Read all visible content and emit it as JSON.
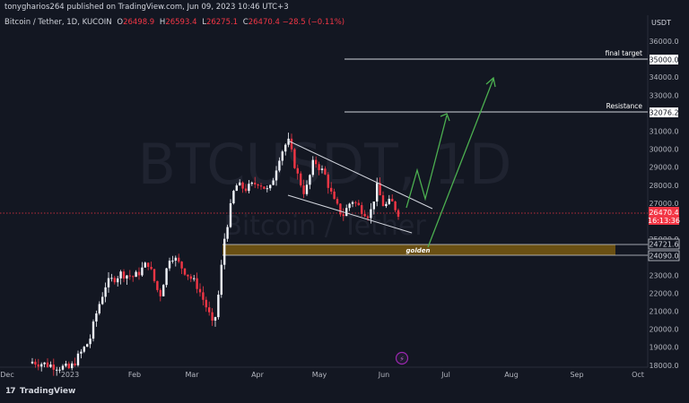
{
  "header": {
    "publish_line": "tonygharios264 published on TradingView.com, Jun 09, 2023 10:46 UTC+3"
  },
  "legend": {
    "symbol": "Bitcoin / Tether, 1D, KUCOIN",
    "o_key": "O",
    "o_val": "26498.9",
    "h_key": "H",
    "h_val": "26593.4",
    "l_key": "L",
    "l_val": "26275.1",
    "c_key": "C",
    "c_val": "26470.4",
    "change": "−28.5 (−0.11%)"
  },
  "watermark": {
    "ticker": "BTCUSDT, 1D",
    "name": "Bitcoin / Tether"
  },
  "price_axis": {
    "currency": "USDT",
    "ticks": [
      "36000.0",
      "35000.0",
      "34000.0",
      "33000.0",
      "32000.0",
      "31000.0",
      "30000.0",
      "29000.0",
      "28000.0",
      "27000.0",
      "25000.0",
      "24000.0",
      "23000.0",
      "22000.0",
      "21000.0",
      "20000.0",
      "19000.0",
      "18000.0"
    ]
  },
  "time_axis": {
    "ticks": [
      "Dec",
      "2023",
      "Feb",
      "Mar",
      "Apr",
      "May",
      "Jun",
      "Jul",
      "Aug",
      "Sep",
      "Oct"
    ]
  },
  "annotations": {
    "final_target_label": "final target",
    "final_target_price": "35000.0",
    "resistance_label": "Resistance",
    "resistance_price": "32076.2",
    "zone_label": "golden",
    "zone_top_price": "24721.6",
    "zone_bottom_price": "24090.0",
    "current_price": "26470.4",
    "countdown": "16:13:36"
  },
  "colors": {
    "background": "#131722",
    "up": "#f0f3fa",
    "down": "#f23645",
    "arrow": "#4caf50",
    "zone": "#7a5a10"
  },
  "footer": {
    "brand": "TradingView"
  }
}
